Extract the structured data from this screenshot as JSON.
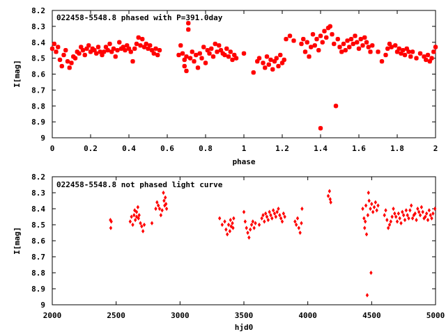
{
  "chart_data": [
    {
      "type": "scatter",
      "title": "022458-5548.8 phased with P=391.0day",
      "xlabel": "phase",
      "ylabel": "I[mag]",
      "xlim": [
        0,
        2
      ],
      "ylim": [
        9,
        8.2
      ],
      "y_inverted": true,
      "xticks": [
        0,
        0.2,
        0.4,
        0.6,
        0.8,
        1,
        1.2,
        1.4,
        1.6,
        1.8,
        2
      ],
      "xtick_labels": [
        "0",
        "0.2",
        "0.4",
        "0.6",
        "0.8",
        "1",
        "1.2",
        "1.4",
        "1.6",
        "1.8",
        "2"
      ],
      "yticks": [
        8.2,
        8.3,
        8.4,
        8.5,
        8.6,
        8.7,
        8.8,
        8.9,
        9
      ],
      "ytick_labels": [
        "8.2",
        "8.3",
        "8.4",
        "8.5",
        "8.6",
        "8.7",
        "8.8",
        "8.9",
        "9"
      ],
      "marker": "star",
      "color": "#ff0000",
      "grid": false,
      "points": [
        [
          0.0,
          8.44
        ],
        [
          0.01,
          8.41
        ],
        [
          0.02,
          8.46
        ],
        [
          0.03,
          8.43
        ],
        [
          0.04,
          8.51
        ],
        [
          0.05,
          8.55
        ],
        [
          0.06,
          8.48
        ],
        [
          0.07,
          8.45
        ],
        [
          0.08,
          8.52
        ],
        [
          0.09,
          8.56
        ],
        [
          0.1,
          8.53
        ],
        [
          0.11,
          8.49
        ],
        [
          0.12,
          8.5
        ],
        [
          0.13,
          8.46
        ],
        [
          0.14,
          8.47
        ],
        [
          0.15,
          8.43
        ],
        [
          0.16,
          8.45
        ],
        [
          0.17,
          8.48
        ],
        [
          0.18,
          8.44
        ],
        [
          0.19,
          8.42
        ],
        [
          0.2,
          8.46
        ],
        [
          0.21,
          8.44
        ],
        [
          0.22,
          8.45
        ],
        [
          0.23,
          8.47
        ],
        [
          0.24,
          8.43
        ],
        [
          0.25,
          8.46
        ],
        [
          0.26,
          8.48
        ],
        [
          0.27,
          8.46
        ],
        [
          0.28,
          8.43
        ],
        [
          0.29,
          8.45
        ],
        [
          0.3,
          8.41
        ],
        [
          0.31,
          8.46
        ],
        [
          0.32,
          8.44
        ],
        [
          0.33,
          8.49
        ],
        [
          0.34,
          8.45
        ],
        [
          0.35,
          8.4
        ],
        [
          0.36,
          8.44
        ],
        [
          0.37,
          8.43
        ],
        [
          0.38,
          8.45
        ],
        [
          0.39,
          8.42
        ],
        [
          0.4,
          8.44
        ],
        [
          0.41,
          8.46
        ],
        [
          0.42,
          8.52
        ],
        [
          0.43,
          8.44
        ],
        [
          0.44,
          8.41
        ],
        [
          0.45,
          8.37
        ],
        [
          0.46,
          8.42
        ],
        [
          0.47,
          8.38
        ],
        [
          0.48,
          8.43
        ],
        [
          0.49,
          8.41
        ],
        [
          0.5,
          8.44
        ],
        [
          0.51,
          8.42
        ],
        [
          0.52,
          8.45
        ],
        [
          0.53,
          8.47
        ],
        [
          0.54,
          8.44
        ],
        [
          0.55,
          8.48
        ],
        [
          0.56,
          8.45
        ],
        [
          0.66,
          8.48
        ],
        [
          0.67,
          8.42
        ],
        [
          0.68,
          8.47
        ],
        [
          0.69,
          8.51
        ],
        [
          0.69,
          8.55
        ],
        [
          0.7,
          8.49
        ],
        [
          0.7,
          8.58
        ],
        [
          0.71,
          8.28
        ],
        [
          0.71,
          8.32
        ],
        [
          0.72,
          8.5
        ],
        [
          0.73,
          8.46
        ],
        [
          0.74,
          8.52
        ],
        [
          0.75,
          8.48
        ],
        [
          0.76,
          8.56
        ],
        [
          0.77,
          8.47
        ],
        [
          0.78,
          8.5
        ],
        [
          0.79,
          8.43
        ],
        [
          0.8,
          8.53
        ],
        [
          0.81,
          8.45
        ],
        [
          0.82,
          8.47
        ],
        [
          0.83,
          8.44
        ],
        [
          0.84,
          8.49
        ],
        [
          0.85,
          8.41
        ],
        [
          0.86,
          8.46
        ],
        [
          0.87,
          8.42
        ],
        [
          0.88,
          8.45
        ],
        [
          0.89,
          8.47
        ],
        [
          0.9,
          8.48
        ],
        [
          0.91,
          8.44
        ],
        [
          0.92,
          8.49
        ],
        [
          0.93,
          8.46
        ],
        [
          0.94,
          8.51
        ],
        [
          0.95,
          8.48
        ],
        [
          0.96,
          8.5
        ],
        [
          1.0,
          8.47
        ],
        [
          1.05,
          8.59
        ],
        [
          1.07,
          8.52
        ],
        [
          1.08,
          8.5
        ],
        [
          1.1,
          8.53
        ],
        [
          1.11,
          8.56
        ],
        [
          1.12,
          8.49
        ],
        [
          1.13,
          8.54
        ],
        [
          1.14,
          8.51
        ],
        [
          1.15,
          8.57
        ],
        [
          1.16,
          8.52
        ],
        [
          1.17,
          8.5
        ],
        [
          1.18,
          8.55
        ],
        [
          1.19,
          8.48
        ],
        [
          1.2,
          8.53
        ],
        [
          1.21,
          8.51
        ],
        [
          1.22,
          8.38
        ],
        [
          1.24,
          8.36
        ],
        [
          1.26,
          8.39
        ],
        [
          1.3,
          8.41
        ],
        [
          1.31,
          8.38
        ],
        [
          1.32,
          8.46
        ],
        [
          1.33,
          8.4
        ],
        [
          1.34,
          8.49
        ],
        [
          1.35,
          8.43
        ],
        [
          1.36,
          8.35
        ],
        [
          1.37,
          8.42
        ],
        [
          1.38,
          8.38
        ],
        [
          1.39,
          8.45
        ],
        [
          1.4,
          8.36
        ],
        [
          1.4,
          8.94
        ],
        [
          1.41,
          8.4
        ],
        [
          1.42,
          8.33
        ],
        [
          1.43,
          8.37
        ],
        [
          1.44,
          8.31
        ],
        [
          1.45,
          8.3
        ],
        [
          1.46,
          8.35
        ],
        [
          1.47,
          8.41
        ],
        [
          1.48,
          8.8
        ],
        [
          1.49,
          8.38
        ],
        [
          1.5,
          8.43
        ],
        [
          1.51,
          8.46
        ],
        [
          1.52,
          8.41
        ],
        [
          1.53,
          8.45
        ],
        [
          1.54,
          8.39
        ],
        [
          1.55,
          8.43
        ],
        [
          1.56,
          8.38
        ],
        [
          1.57,
          8.41
        ],
        [
          1.58,
          8.36
        ],
        [
          1.59,
          8.4
        ],
        [
          1.6,
          8.44
        ],
        [
          1.61,
          8.38
        ],
        [
          1.62,
          8.42
        ],
        [
          1.63,
          8.37
        ],
        [
          1.64,
          8.4
        ],
        [
          1.65,
          8.43
        ],
        [
          1.66,
          8.46
        ],
        [
          1.67,
          8.42
        ],
        [
          1.7,
          8.46
        ],
        [
          1.72,
          8.52
        ],
        [
          1.74,
          8.48
        ],
        [
          1.75,
          8.44
        ],
        [
          1.76,
          8.41
        ],
        [
          1.77,
          8.43
        ],
        [
          1.79,
          8.42
        ],
        [
          1.8,
          8.46
        ],
        [
          1.81,
          8.44
        ],
        [
          1.82,
          8.47
        ],
        [
          1.83,
          8.45
        ],
        [
          1.84,
          8.48
        ],
        [
          1.85,
          8.44
        ],
        [
          1.86,
          8.46
        ],
        [
          1.87,
          8.49
        ],
        [
          1.88,
          8.46
        ],
        [
          1.9,
          8.5
        ],
        [
          1.92,
          8.47
        ],
        [
          1.94,
          8.49
        ],
        [
          1.95,
          8.51
        ],
        [
          1.96,
          8.48
        ],
        [
          1.97,
          8.52
        ],
        [
          1.98,
          8.5
        ],
        [
          1.99,
          8.46
        ],
        [
          2.0,
          8.43
        ]
      ]
    },
    {
      "type": "scatter",
      "title": "022458-5548.8 not phased light curve",
      "xlabel": "hjd0",
      "ylabel": "I[mag]",
      "xlim": [
        2000,
        5000
      ],
      "ylim": [
        9,
        8.2
      ],
      "y_inverted": true,
      "xticks": [
        2000,
        2500,
        3000,
        3500,
        4000,
        4500,
        5000
      ],
      "xtick_labels": [
        "2000",
        "2500",
        "3000",
        "3500",
        "4000",
        "4500",
        "5000"
      ],
      "yticks": [
        8.2,
        8.3,
        8.4,
        8.5,
        8.6,
        8.7,
        8.8,
        8.9,
        9
      ],
      "ytick_labels": [
        "8.2",
        "8.3",
        "8.4",
        "8.5",
        "8.6",
        "8.7",
        "8.8",
        "8.9",
        "9"
      ],
      "marker": "diamond",
      "color": "#ff0000",
      "grid": false,
      "points": [
        [
          2455,
          8.47
        ],
        [
          2458,
          8.52
        ],
        [
          2462,
          8.48
        ],
        [
          2610,
          8.48
        ],
        [
          2620,
          8.45
        ],
        [
          2630,
          8.5
        ],
        [
          2640,
          8.44
        ],
        [
          2650,
          8.47
        ],
        [
          2660,
          8.42
        ],
        [
          2670,
          8.39
        ],
        [
          2680,
          8.44
        ],
        [
          2690,
          8.49
        ],
        [
          2700,
          8.51
        ],
        [
          2710,
          8.54
        ],
        [
          2720,
          8.5
        ],
        [
          2660,
          8.45
        ],
        [
          2675,
          8.46
        ],
        [
          2645,
          8.41
        ],
        [
          2780,
          8.49
        ],
        [
          2810,
          8.4
        ],
        [
          2820,
          8.36
        ],
        [
          2830,
          8.38
        ],
        [
          2840,
          8.4
        ],
        [
          2850,
          8.44
        ],
        [
          2860,
          8.41
        ],
        [
          2870,
          8.3
        ],
        [
          2875,
          8.35
        ],
        [
          2880,
          8.38
        ],
        [
          2885,
          8.33
        ],
        [
          2890,
          8.37
        ],
        [
          2895,
          8.4
        ],
        [
          3310,
          8.46
        ],
        [
          3330,
          8.5
        ],
        [
          3350,
          8.48
        ],
        [
          3360,
          8.53
        ],
        [
          3370,
          8.56
        ],
        [
          3380,
          8.5
        ],
        [
          3390,
          8.54
        ],
        [
          3395,
          8.47
        ],
        [
          3400,
          8.51
        ],
        [
          3410,
          8.49
        ],
        [
          3415,
          8.52
        ],
        [
          3420,
          8.46
        ],
        [
          3500,
          8.42
        ],
        [
          3510,
          8.48
        ],
        [
          3520,
          8.52
        ],
        [
          3530,
          8.55
        ],
        [
          3540,
          8.58
        ],
        [
          3550,
          8.53
        ],
        [
          3560,
          8.5
        ],
        [
          3570,
          8.48
        ],
        [
          3580,
          8.52
        ],
        [
          3590,
          8.49
        ],
        [
          3620,
          8.5
        ],
        [
          3640,
          8.46
        ],
        [
          3650,
          8.44
        ],
        [
          3660,
          8.48
        ],
        [
          3670,
          8.43
        ],
        [
          3680,
          8.45
        ],
        [
          3690,
          8.47
        ],
        [
          3700,
          8.42
        ],
        [
          3710,
          8.44
        ],
        [
          3720,
          8.46
        ],
        [
          3730,
          8.41
        ],
        [
          3740,
          8.43
        ],
        [
          3750,
          8.45
        ],
        [
          3760,
          8.42
        ],
        [
          3770,
          8.4
        ],
        [
          3780,
          8.44
        ],
        [
          3790,
          8.46
        ],
        [
          3800,
          8.48
        ],
        [
          3810,
          8.43
        ],
        [
          3820,
          8.45
        ],
        [
          3900,
          8.48
        ],
        [
          3910,
          8.5
        ],
        [
          3920,
          8.46
        ],
        [
          3930,
          8.52
        ],
        [
          3940,
          8.55
        ],
        [
          3950,
          8.49
        ],
        [
          3955,
          8.4
        ],
        [
          4160,
          8.32
        ],
        [
          4170,
          8.29
        ],
        [
          4175,
          8.34
        ],
        [
          4180,
          8.36
        ],
        [
          4430,
          8.4
        ],
        [
          4440,
          8.46
        ],
        [
          4445,
          8.52
        ],
        [
          4450,
          8.48
        ],
        [
          4455,
          8.38
        ],
        [
          4460,
          8.56
        ],
        [
          4465,
          8.94
        ],
        [
          4470,
          8.44
        ],
        [
          4475,
          8.3
        ],
        [
          4480,
          8.35
        ],
        [
          4490,
          8.4
        ],
        [
          4495,
          8.8
        ],
        [
          4500,
          8.37
        ],
        [
          4510,
          8.42
        ],
        [
          4520,
          8.39
        ],
        [
          4530,
          8.36
        ],
        [
          4540,
          8.41
        ],
        [
          4550,
          8.38
        ],
        [
          4600,
          8.44
        ],
        [
          4620,
          8.47
        ],
        [
          4640,
          8.5
        ],
        [
          4660,
          8.45
        ],
        [
          4680,
          8.43
        ],
        [
          4700,
          8.48
        ],
        [
          4720,
          8.46
        ],
        [
          4740,
          8.42
        ],
        [
          4760,
          8.47
        ],
        [
          4780,
          8.44
        ],
        [
          4800,
          8.41
        ],
        [
          4820,
          8.46
        ],
        [
          4840,
          8.43
        ],
        [
          4860,
          8.4
        ],
        [
          4880,
          8.44
        ],
        [
          4900,
          8.42
        ],
        [
          4920,
          8.45
        ],
        [
          4940,
          8.47
        ],
        [
          4960,
          8.44
        ],
        [
          4980,
          8.43
        ],
        [
          4995,
          8.4
        ],
        [
          4610,
          8.41
        ],
        [
          4630,
          8.52
        ],
        [
          4650,
          8.48
        ],
        [
          4670,
          8.4
        ],
        [
          4690,
          8.45
        ],
        [
          4710,
          8.43
        ],
        [
          4730,
          8.49
        ],
        [
          4750,
          8.44
        ],
        [
          4770,
          8.41
        ],
        [
          4790,
          8.46
        ],
        [
          4810,
          8.38
        ],
        [
          4830,
          8.44
        ],
        [
          4850,
          8.47
        ],
        [
          4870,
          8.42
        ],
        [
          4890,
          8.39
        ],
        [
          4910,
          8.46
        ],
        [
          4930,
          8.43
        ],
        [
          4950,
          8.41
        ],
        [
          4970,
          8.46
        ]
      ]
    }
  ]
}
